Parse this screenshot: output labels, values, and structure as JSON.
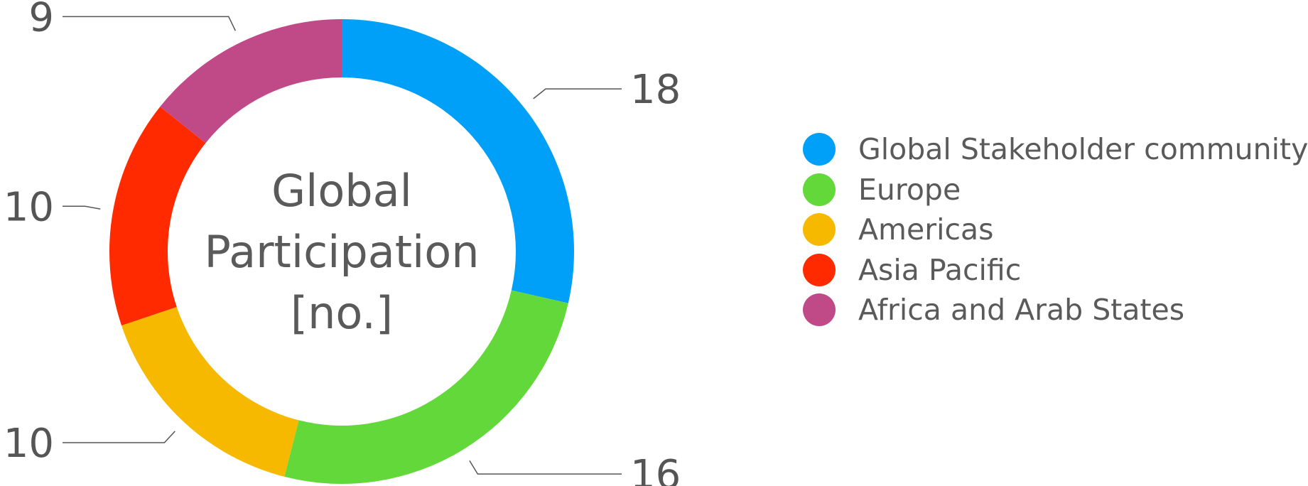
{
  "chart_data": {
    "type": "pie",
    "variant": "donut",
    "title": "Global Participation [no.]",
    "title_lines": [
      "Global",
      "Participation",
      "[no.]"
    ],
    "categories": [
      "Global Stakeholder community",
      "Europe",
      "Americas",
      "Asia Pacific",
      "Africa and Arab States"
    ],
    "values": [
      18,
      16,
      10,
      10,
      9
    ],
    "colors": [
      "#00a0f8",
      "#63d83a",
      "#f7b900",
      "#ff2a00",
      "#c04a87"
    ],
    "start_angle_deg": 0,
    "direction": "clockwise",
    "legend_position": "right",
    "data_labels": true
  }
}
